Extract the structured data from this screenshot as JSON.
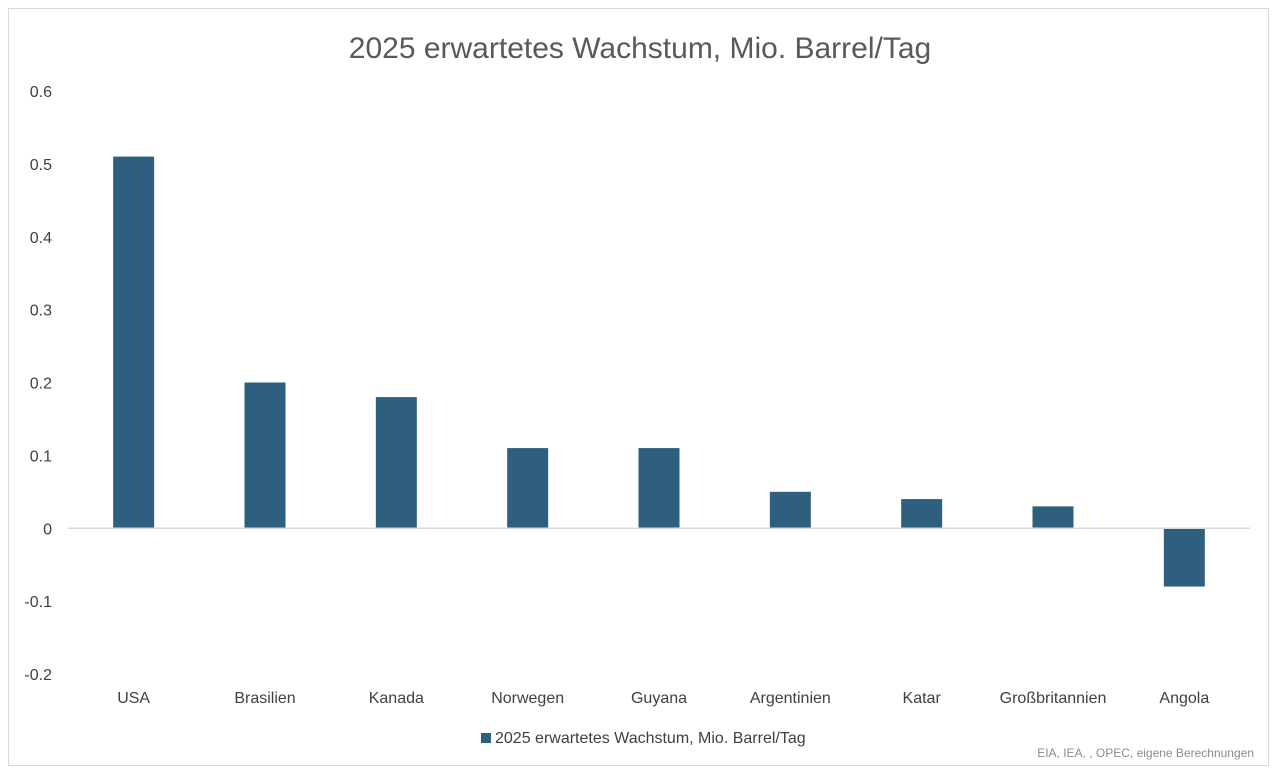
{
  "chart_data": {
    "type": "bar",
    "title": "2025 erwartetes Wachstum, Mio. Barrel/Tag",
    "categories": [
      "USA",
      "Brasilien",
      "Kanada",
      "Norwegen",
      "Guyana",
      "Argentinien",
      "Katar",
      "Großbritannien",
      "Angola"
    ],
    "series": [
      {
        "name": "2025 erwartetes Wachstum, Mio. Barrel/Tag",
        "values": [
          0.51,
          0.2,
          0.18,
          0.11,
          0.11,
          0.05,
          0.04,
          0.03,
          -0.08
        ],
        "color": "#2e5f7f"
      }
    ],
    "yticks": [
      "0.6",
      "0.5",
      "0.4",
      "0.3",
      "0.2",
      "0.1",
      "0",
      "-0.1",
      "-0.2"
    ],
    "ylim": [
      -0.2,
      0.6
    ],
    "xlabel": "",
    "ylabel": "",
    "grid": false,
    "legend": "bottom",
    "source_note": "EIA, IEA, , OPEC, eigene Berechnungen",
    "axis_color": "#d9d9d9"
  }
}
